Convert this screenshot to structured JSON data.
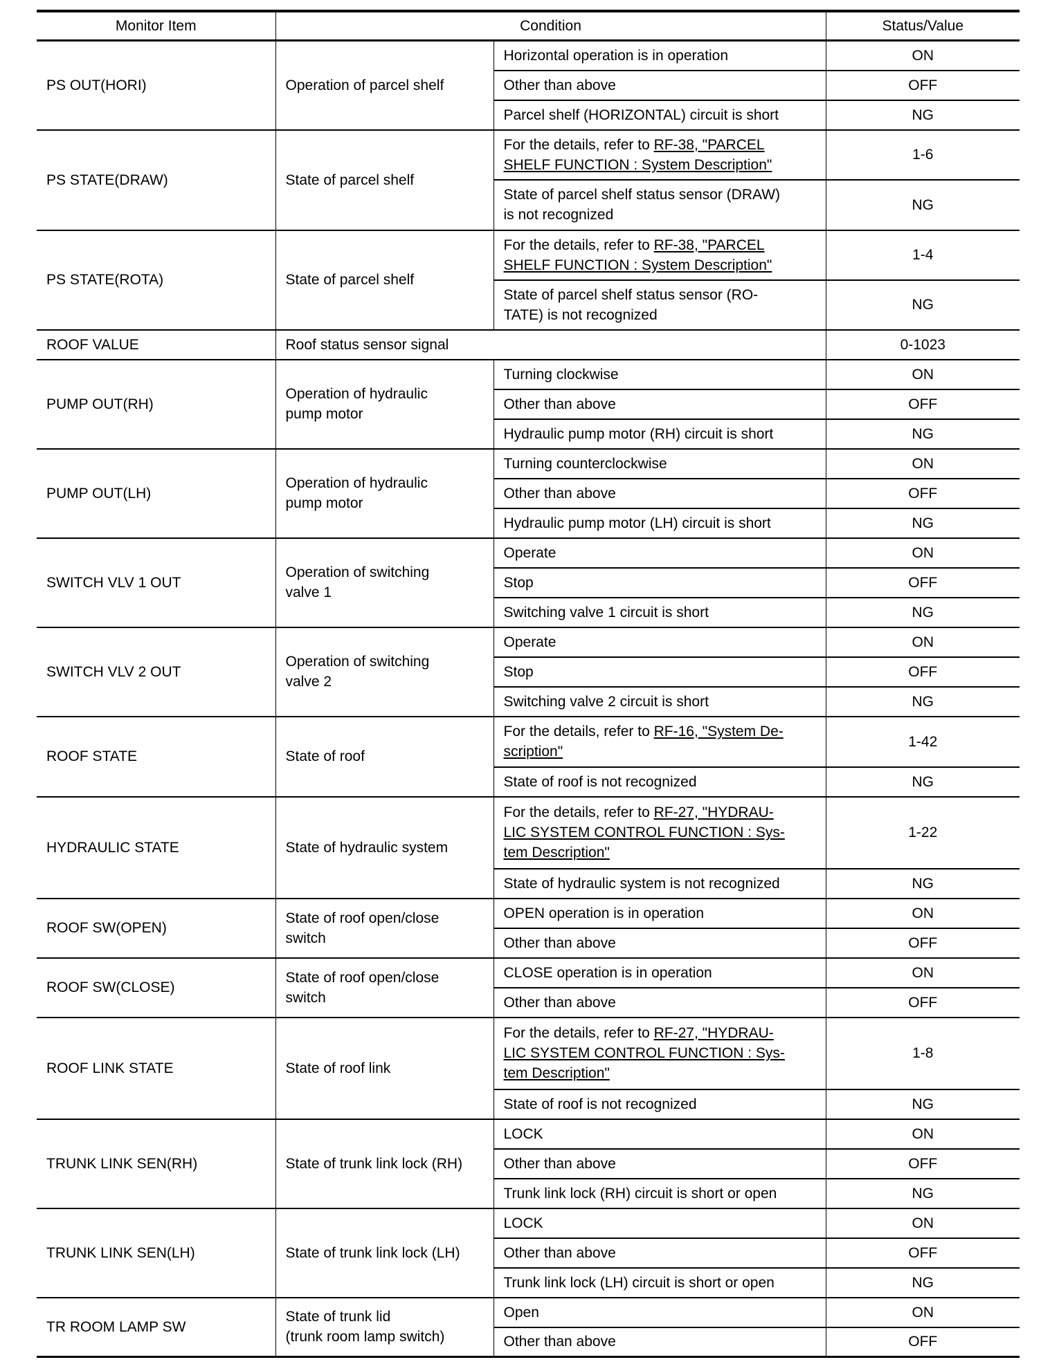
{
  "headers": {
    "monitor_item": "Monitor Item",
    "condition": "Condition",
    "status_value": "Status/Value"
  },
  "rows": [
    {
      "item": "PS OUT(HORI)",
      "condition": "Operation of parcel shelf",
      "subs": [
        {
          "text": "Horizontal operation is in operation",
          "value": "ON"
        },
        {
          "text": "Other than above",
          "value": "OFF"
        },
        {
          "text": "Parcel shelf (HORIZONTAL) circuit is short",
          "value": "NG"
        }
      ]
    },
    {
      "item": "PS STATE(DRAW)",
      "condition": "State of parcel shelf",
      "subs": [
        {
          "text": "For the details, refer to ",
          "link": "RF-38, \"PARCEL\nSHELF FUNCTION : System Description\"",
          "value": "1-6",
          "h": 72
        },
        {
          "text": "State of parcel shelf status sensor (DRAW)\nis not recognized",
          "value": "NG",
          "h": 73
        }
      ]
    },
    {
      "item": "PS STATE(ROTA)",
      "condition": "State of parcel shelf",
      "subs": [
        {
          "text": "For the details, refer to ",
          "link": "RF-38, \"PARCEL\nSHELF FUNCTION : System Description\"",
          "value": "1-4",
          "h": 72
        },
        {
          "text": "State of parcel shelf status sensor (RO-\nTATE) is not recognized",
          "value": "NG",
          "h": 72
        }
      ]
    },
    {
      "item": "ROOF VALUE",
      "condition": "Roof status sensor signal",
      "span": true,
      "subs": [
        {
          "text": "",
          "value": "0-1023"
        }
      ]
    },
    {
      "item": "PUMP OUT(RH)",
      "condition": "Operation of hydraulic\npump motor",
      "subs": [
        {
          "text": "Turning clockwise",
          "value": "ON"
        },
        {
          "text": "Other than above",
          "value": "OFF"
        },
        {
          "text": "Hydraulic pump motor (RH) circuit is short",
          "value": "NG"
        }
      ]
    },
    {
      "item": "PUMP OUT(LH)",
      "condition": "Operation of hydraulic\npump motor",
      "subs": [
        {
          "text": "Turning counterclockwise",
          "value": "ON"
        },
        {
          "text": "Other than above",
          "value": "OFF"
        },
        {
          "text": "Hydraulic pump motor (LH) circuit is short",
          "value": "NG"
        }
      ]
    },
    {
      "item": "SWITCH VLV 1 OUT",
      "condition": "Operation of switching\nvalve 1",
      "subs": [
        {
          "text": "Operate",
          "value": "ON"
        },
        {
          "text": "Stop",
          "value": "OFF"
        },
        {
          "text": "Switching valve 1 circuit is short",
          "value": "NG"
        }
      ]
    },
    {
      "item": "SWITCH VLV 2 OUT",
      "condition": "Operation of switching\nvalve 2",
      "subs": [
        {
          "text": "Operate",
          "value": "ON"
        },
        {
          "text": "Stop",
          "value": "OFF"
        },
        {
          "text": "Switching valve 2 circuit is short",
          "value": "NG"
        }
      ]
    },
    {
      "item": "ROOF STATE",
      "condition": "State of roof",
      "subs": [
        {
          "text": "For the details, refer to ",
          "link": "RF-16, \"System De-\nscription\"",
          "value": "1-42",
          "h": 73
        },
        {
          "text": "State of roof is not recognized",
          "value": "NG"
        }
      ]
    },
    {
      "item": "HYDRAULIC STATE",
      "condition": "State of hydraulic system",
      "subs": [
        {
          "text": "For the details, refer to ",
          "link": "RF-27, \"HYDRAU-\nLIC SYSTEM CONTROL FUNCTION : Sys-\ntem Description\"",
          "value": "1-22",
          "h": 104
        },
        {
          "text": "State of hydraulic system is not recognized",
          "value": "NG"
        }
      ]
    },
    {
      "item": "ROOF SW(OPEN)",
      "condition": "State of roof open/close\nswitch",
      "subs": [
        {
          "text": "OPEN operation is in operation",
          "value": "ON"
        },
        {
          "text": "Other than above",
          "value": "OFF"
        }
      ]
    },
    {
      "item": "ROOF SW(CLOSE)",
      "condition": "State of roof open/close\nswitch",
      "subs": [
        {
          "text": "CLOSE operation is in operation",
          "value": "ON"
        },
        {
          "text": "Other than above",
          "value": "OFF"
        }
      ]
    },
    {
      "item": "ROOF LINK STATE",
      "condition": "State of roof link",
      "subs": [
        {
          "text": "For the details, refer to ",
          "link": "RF-27, \"HYDRAU-\nLIC SYSTEM CONTROL FUNCTION : Sys-\ntem Description\"",
          "value": "1-8",
          "h": 104
        },
        {
          "text": "State of roof is not recognized",
          "value": "NG"
        }
      ]
    },
    {
      "item": "TRUNK LINK SEN(RH)",
      "condition": "State of trunk link lock (RH)",
      "subs": [
        {
          "text": "LOCK",
          "value": "ON"
        },
        {
          "text": "Other than above",
          "value": "OFF"
        },
        {
          "text": "Trunk link lock (RH) circuit is short or open",
          "value": "NG"
        }
      ]
    },
    {
      "item": "TRUNK LINK SEN(LH)",
      "condition": "State of trunk link lock (LH)",
      "subs": [
        {
          "text": "LOCK",
          "value": "ON"
        },
        {
          "text": "Other than above",
          "value": "OFF"
        },
        {
          "text": "Trunk link lock (LH) circuit is short or open",
          "value": "NG"
        }
      ]
    },
    {
      "item": "TR ROOM LAMP SW",
      "condition": "State of trunk lid\n(trunk room lamp switch)",
      "subs": [
        {
          "text": "Open",
          "value": "ON"
        },
        {
          "text": "Other than above",
          "value": "OFF"
        }
      ]
    }
  ]
}
